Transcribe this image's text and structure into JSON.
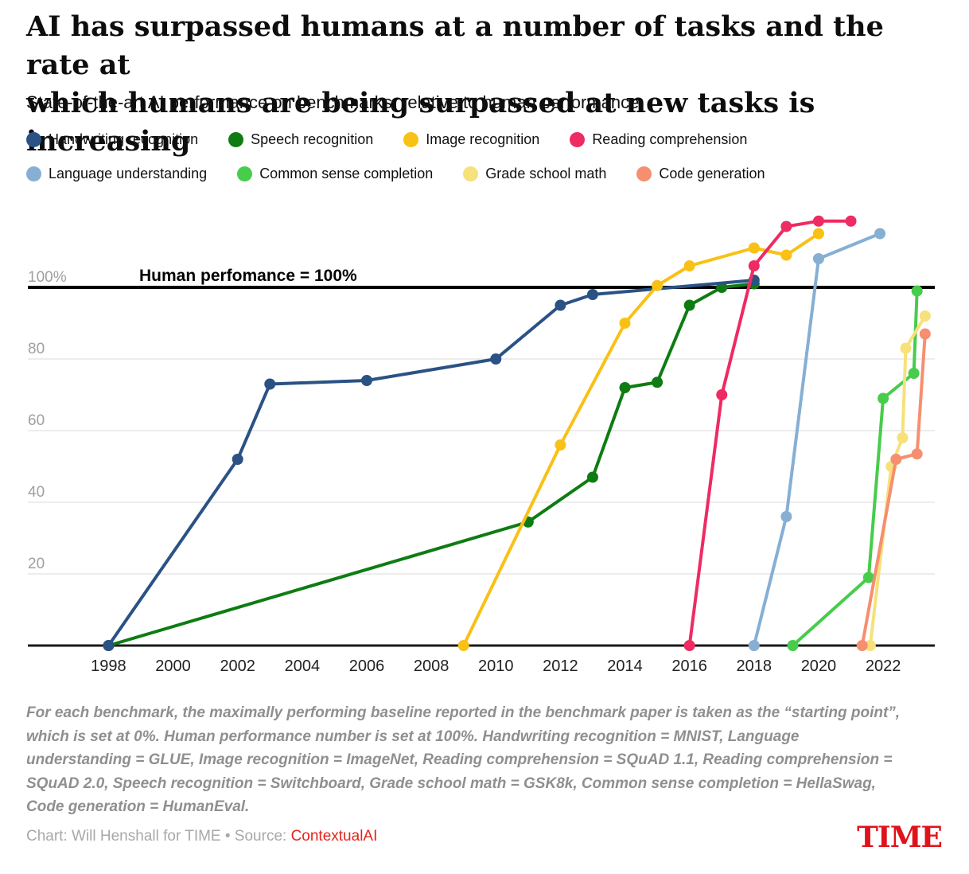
{
  "header": {
    "title_lines": [
      "AI has surpassed humans at a number of tasks and the rate at",
      "which humans are being surpassed at new tasks is increasing"
    ],
    "subtitle": "State-of-the-art AI performance on benchmarks, relative to human performance"
  },
  "legend": {
    "rows": [
      [
        {
          "label": "Handwriting recognition",
          "color": "#2a5285"
        },
        {
          "label": "Speech recognition",
          "color": "#0e7c12"
        },
        {
          "label": "Image recognition",
          "color": "#f9c116"
        },
        {
          "label": "Reading comprehension",
          "color": "#ee2b62"
        }
      ],
      [
        {
          "label": "Language understanding",
          "color": "#86afd3"
        },
        {
          "label": "Common sense completion",
          "color": "#47cc4b"
        },
        {
          "label": "Grade school math",
          "color": "#f6e17a"
        },
        {
          "label": "Code generation",
          "color": "#f68f70"
        }
      ]
    ]
  },
  "chart_data": {
    "type": "line",
    "title": "State-of-the-art AI performance on benchmarks, relative to human performance",
    "xlabel": "",
    "ylabel": "",
    "xlim": [
      1995.5,
      2023.6
    ],
    "ylim": [
      0,
      124
    ],
    "grid": true,
    "legend_position": "top",
    "annotation": "Human perfomance = 100%",
    "human_line_value": 100,
    "xticks": [
      1998,
      2000,
      2002,
      2004,
      2006,
      2008,
      2010,
      2012,
      2014,
      2016,
      2018,
      2020,
      2022
    ],
    "yticks": [
      {
        "value": 100,
        "label": "100%"
      },
      {
        "value": 80,
        "label": "80"
      },
      {
        "value": 60,
        "label": "60"
      },
      {
        "value": 40,
        "label": "40"
      },
      {
        "value": 20,
        "label": "20"
      }
    ],
    "series": [
      {
        "name": "Handwriting recognition",
        "color": "#2a5285",
        "points": [
          [
            1998,
            0
          ],
          [
            2002,
            52
          ],
          [
            2003,
            73
          ],
          [
            2006,
            74
          ],
          [
            2010,
            80
          ],
          [
            2012,
            95
          ],
          [
            2013,
            98
          ],
          [
            2018,
            102
          ]
        ]
      },
      {
        "name": "Speech recognition",
        "color": "#0e7c12",
        "points": [
          [
            1998,
            0
          ],
          [
            2011,
            34.5
          ],
          [
            2013,
            47
          ],
          [
            2014,
            72
          ],
          [
            2015,
            73.5
          ],
          [
            2016,
            95
          ],
          [
            2017,
            100
          ],
          [
            2018,
            101
          ]
        ]
      },
      {
        "name": "Image recognition",
        "color": "#f9c116",
        "points": [
          [
            2009,
            0
          ],
          [
            2012,
            56
          ],
          [
            2014,
            90
          ],
          [
            2015,
            100.5
          ],
          [
            2016,
            106
          ],
          [
            2018,
            111
          ],
          [
            2019,
            109
          ],
          [
            2020,
            115
          ]
        ]
      },
      {
        "name": "Reading comprehension",
        "color": "#ee2b62",
        "points": [
          [
            2016,
            0
          ],
          [
            2017,
            70
          ],
          [
            2018,
            106
          ],
          [
            2019,
            117
          ],
          [
            2020,
            118.5
          ],
          [
            2021,
            118.5
          ]
        ]
      },
      {
        "name": "Language understanding",
        "color": "#86afd3",
        "points": [
          [
            2018,
            0
          ],
          [
            2019,
            36
          ],
          [
            2020,
            108
          ],
          [
            2021.9,
            115
          ]
        ]
      },
      {
        "name": "Common sense completion",
        "color": "#47cc4b",
        "points": [
          [
            2019.2,
            0
          ],
          [
            2021.55,
            19
          ],
          [
            2022,
            69
          ],
          [
            2022.95,
            76
          ],
          [
            2023.05,
            99
          ]
        ]
      },
      {
        "name": "Grade school math",
        "color": "#f6e17a",
        "points": [
          [
            2021.6,
            0
          ],
          [
            2022.25,
            50
          ],
          [
            2022.6,
            58
          ],
          [
            2022.7,
            83
          ],
          [
            2023.3,
            92
          ]
        ]
      },
      {
        "name": "Code generation",
        "color": "#f68f70",
        "points": [
          [
            2021.35,
            0
          ],
          [
            2022.4,
            52
          ],
          [
            2023.05,
            53.5
          ],
          [
            2023.3,
            87
          ]
        ]
      }
    ],
    "draw_order": [
      "Speech recognition",
      "Handwriting recognition",
      "Image recognition",
      "Reading comprehension",
      "Language understanding",
      "Common sense completion",
      "Grade school math",
      "Code generation"
    ]
  },
  "footnote": {
    "lines": [
      "For each benchmark, the maximally performing baseline reported in the benchmark paper is taken as the “starting point”,",
      "which is set at 0%. Human performance number is set at 100%. Handwriting recognition = MNIST, Language",
      "understanding = GLUE, Image recognition = ImageNet, Reading comprehension = SQuAD 1.1, Reading comprehension =",
      "SQuAD 2.0, Speech recognition = Switchboard, Grade school math = GSK8k, Common sense completion = HellaSwag,",
      "Code generation = HumanEval."
    ]
  },
  "credit": {
    "prefix": "Chart: Will Henshall for TIME • Source: ",
    "source": "ContextualAI"
  },
  "brand": {
    "logo": "TIME"
  }
}
